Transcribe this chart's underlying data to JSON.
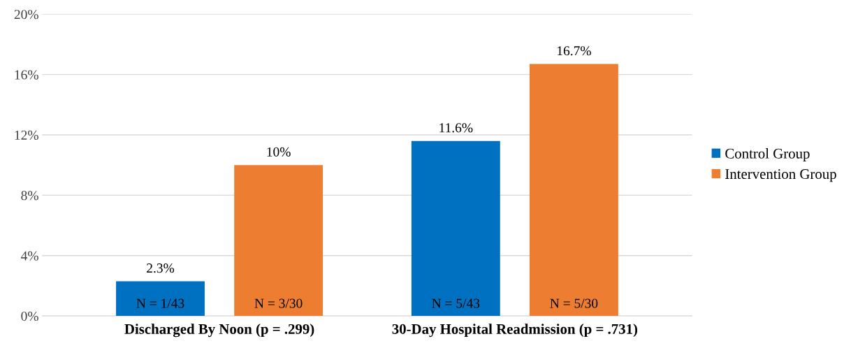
{
  "chart_data": {
    "type": "bar",
    "categories": [
      "Discharged By Noon (p = .299)",
      "30-Day Hospital Readmission (p = .731)"
    ],
    "series": [
      {
        "name": "Control Group",
        "color": "#0070c0",
        "values": [
          2.3,
          11.6
        ],
        "value_labels": [
          "2.3%",
          "11.6%"
        ]
      },
      {
        "name": "Intervention Group",
        "color": "#ed7d31",
        "values": [
          10,
          16.7
        ],
        "value_labels": [
          "10%",
          "16.7%"
        ]
      }
    ],
    "annotations": [
      "N = 1/43",
      "N = 3/30",
      "N = 5/43",
      "N = 5/30"
    ],
    "ylim": [
      0,
      20
    ],
    "yticks": [
      {
        "value": 0,
        "label": "0%"
      },
      {
        "value": 4,
        "label": "4%"
      },
      {
        "value": 8,
        "label": "8%"
      },
      {
        "value": 12,
        "label": "12%"
      },
      {
        "value": 16,
        "label": "16%"
      },
      {
        "value": 20,
        "label": "20%"
      }
    ],
    "grid": "y",
    "legend": "right"
  }
}
